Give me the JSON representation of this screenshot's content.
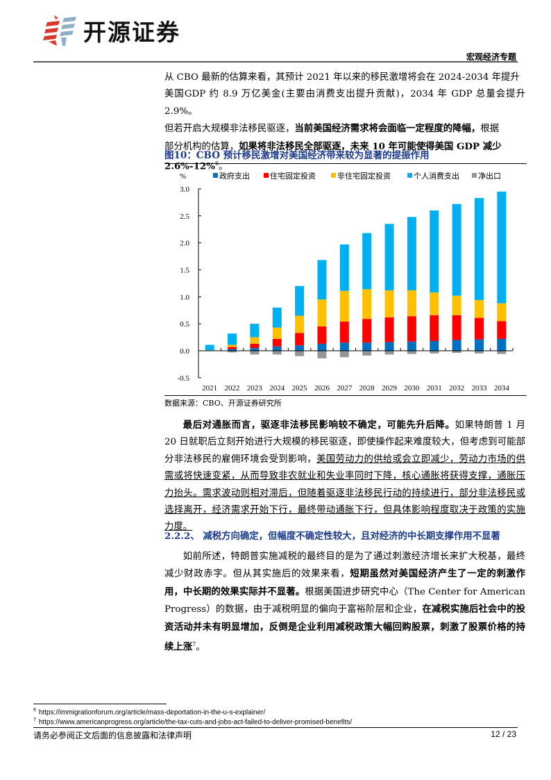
{
  "header": {
    "brand": "开源证券",
    "section_tag": "宏观经济专题"
  },
  "paragraph1": {
    "line1": "从 CBO 最新的估算来看，其预计 2021 年以来的移民激增将会在 2024-2034 年提升",
    "line2": "美国GDP 约 8.9 万亿美金(主要由消费支出提升贡献)，2034 年 GDP 总量会提升 2.9%。",
    "line3a": "但若开启大规模非法移民驱逐，",
    "line3b": "当前美国经济需求将会面临一定程度的降幅，",
    "line3c": "根据",
    "line4a": "部分机构的估算，",
    "line4b": "如果将非法移民全部驱逐，未来 10 年可能使得美国 GDP 减少",
    "line5": "2.6%-12%",
    "line5_sup": "6",
    "line5_end": "。"
  },
  "figure": {
    "title": "图10：CBO 预计移民激增对美国经济带来较为显著的提振作用",
    "source": "数据来源：CBO、开源证券研究所"
  },
  "chart_data": {
    "type": "bar",
    "stacked": true,
    "title": "图10：CBO 预计移民激增对美国经济带来较为显著的提振作用",
    "ylabel": "%",
    "xlabel": "",
    "ylim": [
      -0.5,
      3.0
    ],
    "yticks": [
      "3.0",
      "2.5",
      "2.0",
      "1.5",
      "1.0",
      "0.5",
      "0.0",
      "-0.5"
    ],
    "legend_position": "top",
    "categories": [
      "2021",
      "2022",
      "2023",
      "2024",
      "2025",
      "2026",
      "2027",
      "2028",
      "2029",
      "2030",
      "2031",
      "2032",
      "2033",
      "2034"
    ],
    "series": [
      {
        "name": "政府支出",
        "color": "#0070c0",
        "values": [
          0.0,
          0.03,
          0.05,
          0.08,
          0.1,
          0.13,
          0.15,
          0.15,
          0.16,
          0.17,
          0.18,
          0.2,
          0.21,
          0.22
        ]
      },
      {
        "name": "住宅固定投资",
        "color": "#ff0000",
        "values": [
          0.0,
          0.04,
          0.08,
          0.14,
          0.23,
          0.32,
          0.39,
          0.44,
          0.46,
          0.47,
          0.48,
          0.46,
          0.4,
          0.33
        ]
      },
      {
        "name": "非住宅固定投资",
        "color": "#ffc000",
        "values": [
          0.01,
          0.04,
          0.12,
          0.21,
          0.32,
          0.5,
          0.57,
          0.55,
          0.5,
          0.48,
          0.42,
          0.36,
          0.33,
          0.33
        ]
      },
      {
        "name": "个人消费支出",
        "color": "#00b0f0",
        "values": [
          0.1,
          0.21,
          0.25,
          0.37,
          0.55,
          0.73,
          0.86,
          1.04,
          1.23,
          1.36,
          1.52,
          1.7,
          1.89,
          2.07
        ]
      },
      {
        "name": "净出口",
        "color": "#969696",
        "values": [
          0.0,
          -0.03,
          -0.07,
          -0.07,
          -0.1,
          -0.14,
          -0.12,
          -0.09,
          -0.07,
          -0.06,
          -0.05,
          -0.04,
          -0.05,
          -0.06
        ]
      }
    ]
  },
  "paragraph2": {
    "bold_lead": "最后对通胀而言，驱逐非法移民影响较不确定，可能先升后降。",
    "normal1": "如果特朗普 1 月 20 日就职后立刻开始进行大规模的移民驱逐，即使操作起来难度较大，但考虑到可能部分非法移民的雇佣环境会受到影响，",
    "underlined": "美国劳动力的供给或会立即减少，劳动力市场的供需或将快速变紧，从而导致非农就业和失业率同时下降，核心通胀将获得支撑，通胀压力抬头。需求波动则相对滞后，但随着驱逐非法移民行动的持续进行，部分非法移民或选择离开，经济需求开始下行，最终带动通胀下行，但具体影响程度取决于政策的实施力度。"
  },
  "section": {
    "title": "2.2.2、 减税方向确定，但幅度不确定性较大，且对经济的中长期支撑作用不显著"
  },
  "paragraph3": {
    "normal1": "如前所述，特朗普实施减税的最终目的是为了通过刺激经济增长来扩大税基，最终减少财政赤字。但从其实施后的效果来看，",
    "bold1": "短期虽然对美国经济产生了一定的刺激作用，中长期的效果实际并不显著。",
    "normal2": "根据美国进步研究中心（The Center for American Progress）的数据，由于减税明显的偏向于富裕阶层和企业，",
    "bold2": "在减税实施后社会中的投资活动并未有明显增加，反倒是企业利用减税政策大幅回购股票，刺激了股票价格的持续上涨",
    "sup": "7",
    "end": "。"
  },
  "footnotes": [
    {
      "num": "6",
      "text": "https://immigrationforum.org/article/mass-deportation-in-the-u-s-explainer/"
    },
    {
      "num": "7",
      "text": "https://www.americanprogress.org/article/the-tax-cuts-and-jobs-act-failed-to-deliver-promised-benefits/"
    }
  ],
  "footer": {
    "disclaimer": "请务必参阅正文后面的信息披露和法律声明",
    "page": "12 / 23"
  }
}
